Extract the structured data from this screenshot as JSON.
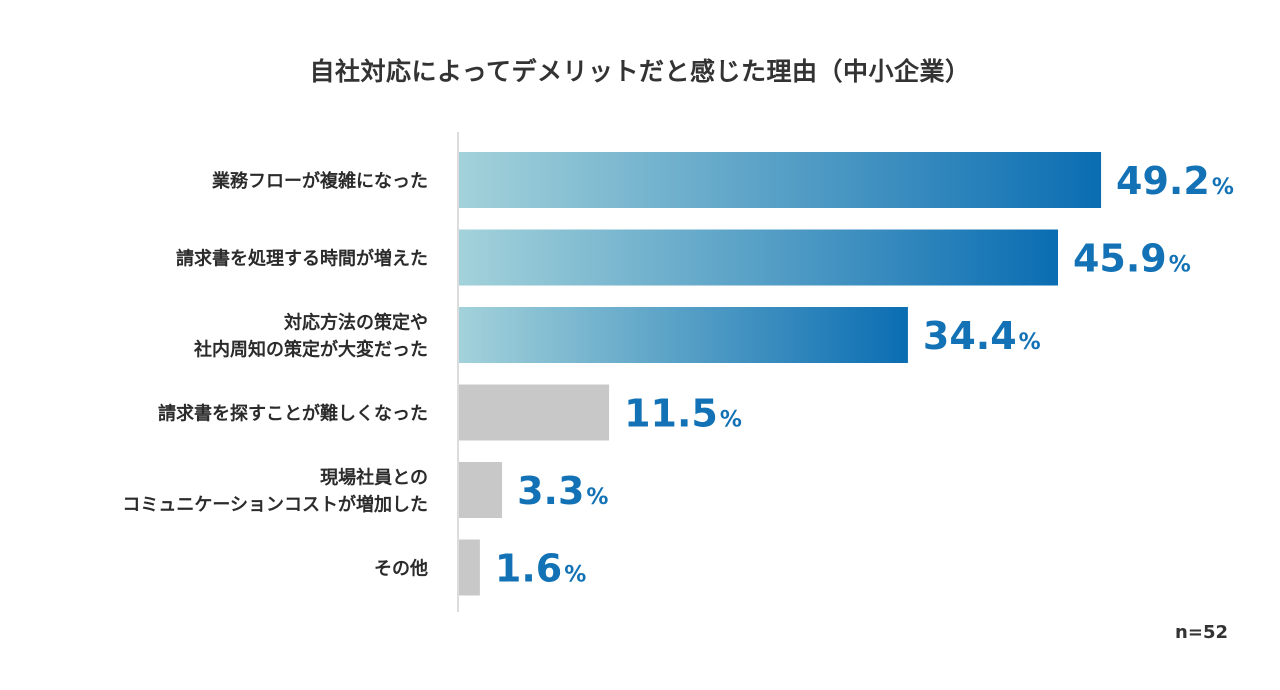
{
  "chart_data": {
    "type": "bar",
    "orientation": "horizontal",
    "title": "自社対応によってデメリットだと感じた理由（中小企業）",
    "categories": [
      [
        "業務フローが複雑になった"
      ],
      [
        "請求書を処理する時間が増えた"
      ],
      [
        "対応方法の策定や",
        "社内周知の策定が大変だった"
      ],
      [
        "請求書を探すことが難しくなった"
      ],
      [
        "現場社員との",
        "コミュニケーションコストが増加した"
      ],
      [
        "その他"
      ]
    ],
    "values": [
      49.2,
      45.9,
      34.4,
      11.5,
      3.3,
      1.6
    ],
    "value_labels": [
      "49.2",
      "45.9",
      "34.4",
      "11.5",
      "3.3",
      "1.6"
    ],
    "unit": "%",
    "highlighted": [
      true,
      true,
      true,
      false,
      false,
      false
    ],
    "xlim": [
      0,
      60
    ],
    "xlabel": "",
    "ylabel": "",
    "sample_note": "n=52"
  },
  "colors": {
    "gradient_start": "#a3d2da",
    "gradient_end": "#0a6db2",
    "muted_bar": "#c8c8c8",
    "value_text": "#1272b5",
    "axis": "#d0d0d0"
  }
}
